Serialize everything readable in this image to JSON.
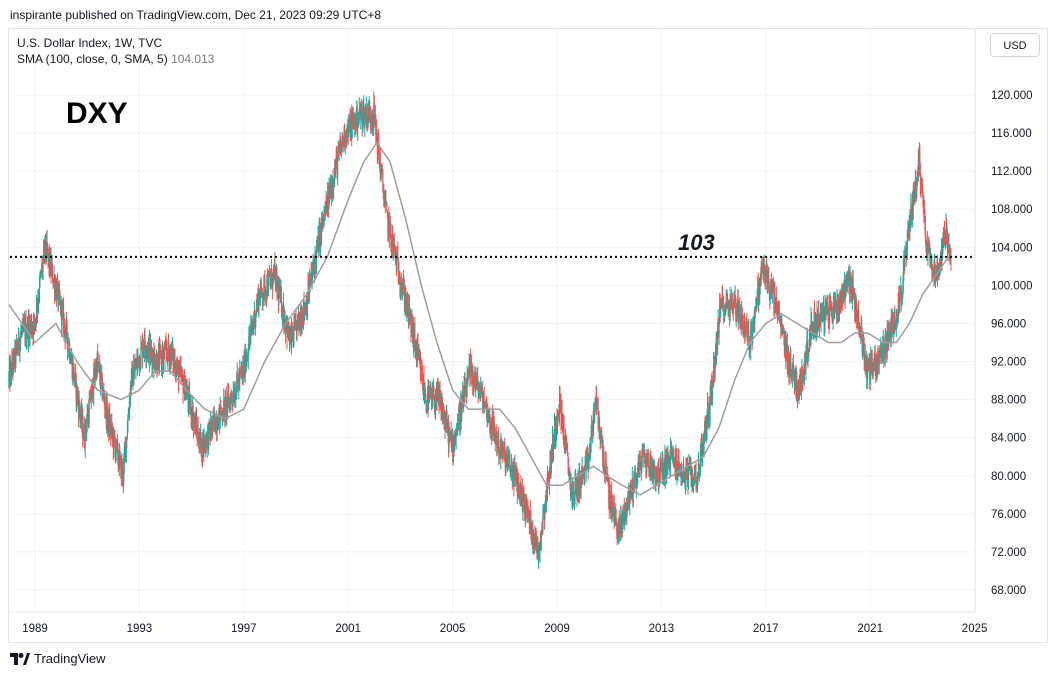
{
  "header": {
    "published": "inspirante published on TradingView.com, Dec 21, 2023 09:29 UTC+8"
  },
  "legend": {
    "symbol": "U.S. Dollar Index, 1W, TVC",
    "indicator": "SMA (100, close, 0, SMA, 5)",
    "indicator_value": "104.013"
  },
  "currency_button": "USD",
  "footer": {
    "brand": "TradingView"
  },
  "colors": {
    "up": "#26a69a",
    "down": "#ef5350",
    "sma": "#9e9e9e",
    "grid": "#f0f3fa"
  },
  "chart_data": {
    "type": "candlestick",
    "title": "DXY",
    "annotations": [
      {
        "text": "103",
        "value": 103,
        "style": "dotted horizontal line"
      }
    ],
    "x_ticks": [
      "1989",
      "1993",
      "1997",
      "2001",
      "2005",
      "2009",
      "2013",
      "2017",
      "2021",
      "2025"
    ],
    "y_ticks": [
      "68.000",
      "72.000",
      "76.000",
      "80.000",
      "84.000",
      "88.000",
      "92.000",
      "96.000",
      "100.000",
      "104.000",
      "108.000",
      "112.000",
      "116.000",
      "120.000"
    ],
    "ylim": [
      66,
      124
    ],
    "xlim": [
      1988.0,
      2025.4
    ],
    "price_path": [
      [
        1988.0,
        90
      ],
      [
        1988.5,
        95
      ],
      [
        1989.0,
        96
      ],
      [
        1989.4,
        104
      ],
      [
        1989.8,
        100
      ],
      [
        1990.3,
        94
      ],
      [
        1990.9,
        84
      ],
      [
        1991.4,
        92
      ],
      [
        1991.8,
        86
      ],
      [
        1992.4,
        80
      ],
      [
        1992.7,
        90
      ],
      [
        1993.2,
        94
      ],
      [
        1993.7,
        92
      ],
      [
        1994.2,
        93
      ],
      [
        1994.8,
        89
      ],
      [
        1995.4,
        83
      ],
      [
        1996.0,
        86
      ],
      [
        1996.5,
        88
      ],
      [
        1997.0,
        91
      ],
      [
        1997.6,
        99
      ],
      [
        1998.2,
        101
      ],
      [
        1998.8,
        94
      ],
      [
        1999.4,
        98
      ],
      [
        2000.0,
        106
      ],
      [
        2000.5,
        112
      ],
      [
        2000.9,
        116
      ],
      [
        2001.5,
        118
      ],
      [
        2002.0,
        118
      ],
      [
        2002.5,
        107
      ],
      [
        2003.0,
        101
      ],
      [
        2003.5,
        95
      ],
      [
        2004.0,
        88
      ],
      [
        2004.5,
        88
      ],
      [
        2005.0,
        83
      ],
      [
        2005.7,
        91
      ],
      [
        2006.2,
        88
      ],
      [
        2006.8,
        83
      ],
      [
        2007.4,
        80
      ],
      [
        2007.9,
        76
      ],
      [
        2008.3,
        72
      ],
      [
        2008.7,
        80
      ],
      [
        2009.1,
        88
      ],
      [
        2009.6,
        78
      ],
      [
        2010.2,
        81
      ],
      [
        2010.5,
        88
      ],
      [
        2011.0,
        78
      ],
      [
        2011.4,
        74
      ],
      [
        2011.8,
        78
      ],
      [
        2012.3,
        82
      ],
      [
        2012.9,
        80
      ],
      [
        2013.4,
        82
      ],
      [
        2013.9,
        80
      ],
      [
        2014.4,
        80
      ],
      [
        2014.9,
        88
      ],
      [
        2015.3,
        98
      ],
      [
        2015.9,
        98
      ],
      [
        2016.4,
        94
      ],
      [
        2016.9,
        102
      ],
      [
        2017.4,
        98
      ],
      [
        2017.9,
        92
      ],
      [
        2018.3,
        89
      ],
      [
        2018.8,
        96
      ],
      [
        2019.3,
        97
      ],
      [
        2019.8,
        98
      ],
      [
        2020.2,
        101
      ],
      [
        2020.6,
        96
      ],
      [
        2020.9,
        91
      ],
      [
        2021.3,
        92
      ],
      [
        2021.8,
        95
      ],
      [
        2022.2,
        99
      ],
      [
        2022.6,
        108
      ],
      [
        2022.9,
        113
      ],
      [
        2023.2,
        104
      ],
      [
        2023.6,
        101
      ],
      [
        2023.9,
        106
      ],
      [
        2024.1,
        102
      ]
    ],
    "sma_path": [
      [
        1988.0,
        98
      ],
      [
        1989.0,
        94
      ],
      [
        1989.8,
        96
      ],
      [
        1990.6,
        92
      ],
      [
        1991.4,
        89
      ],
      [
        1992.3,
        88
      ],
      [
        1993.0,
        89
      ],
      [
        1993.6,
        91
      ],
      [
        1994.2,
        91
      ],
      [
        1994.8,
        89
      ],
      [
        1995.5,
        87
      ],
      [
        1996.3,
        86
      ],
      [
        1997.0,
        87
      ],
      [
        1997.8,
        92
      ],
      [
        1998.6,
        96
      ],
      [
        1999.4,
        99
      ],
      [
        2000.2,
        103
      ],
      [
        2001.0,
        109
      ],
      [
        2001.6,
        113
      ],
      [
        2002.1,
        115
      ],
      [
        2002.6,
        113
      ],
      [
        2003.2,
        107
      ],
      [
        2003.8,
        100
      ],
      [
        2004.4,
        94
      ],
      [
        2005.0,
        89
      ],
      [
        2005.6,
        87
      ],
      [
        2006.2,
        87
      ],
      [
        2006.8,
        87
      ],
      [
        2007.4,
        85
      ],
      [
        2008.0,
        82
      ],
      [
        2008.6,
        79
      ],
      [
        2009.2,
        79
      ],
      [
        2009.8,
        80
      ],
      [
        2010.4,
        81
      ],
      [
        2010.9,
        80
      ],
      [
        2011.5,
        79
      ],
      [
        2012.2,
        78
      ],
      [
        2012.8,
        79
      ],
      [
        2013.4,
        80
      ],
      [
        2014.0,
        81
      ],
      [
        2014.6,
        82
      ],
      [
        2015.2,
        85
      ],
      [
        2015.8,
        90
      ],
      [
        2016.4,
        94
      ],
      [
        2017.0,
        96
      ],
      [
        2017.6,
        97
      ],
      [
        2018.2,
        96
      ],
      [
        2018.8,
        95
      ],
      [
        2019.4,
        94
      ],
      [
        2019.9,
        94
      ],
      [
        2020.4,
        95
      ],
      [
        2020.9,
        95
      ],
      [
        2021.5,
        94
      ],
      [
        2022.0,
        94
      ],
      [
        2022.5,
        96
      ],
      [
        2023.0,
        99
      ],
      [
        2023.5,
        101
      ],
      [
        2024.0,
        103
      ]
    ]
  }
}
